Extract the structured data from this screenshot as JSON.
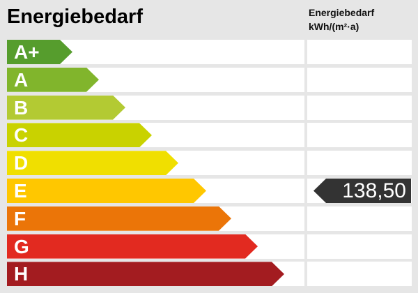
{
  "title": "Energiebedarf",
  "unit_header": {
    "line1": "Energiebedarf",
    "line2": "kWh/(m²·a)"
  },
  "scale": {
    "classes": [
      {
        "label": "A+",
        "color": "#569d2d",
        "arrow_width": 94
      },
      {
        "label": "A",
        "color": "#81b52c",
        "arrow_width": 132
      },
      {
        "label": "B",
        "color": "#b3ca33",
        "arrow_width": 170
      },
      {
        "label": "C",
        "color": "#c9d200",
        "arrow_width": 208
      },
      {
        "label": "D",
        "color": "#f0df00",
        "arrow_width": 246
      },
      {
        "label": "E",
        "color": "#ffc700",
        "arrow_width": 286
      },
      {
        "label": "F",
        "color": "#eb7508",
        "arrow_width": 322
      },
      {
        "label": "G",
        "color": "#e22a20",
        "arrow_width": 360
      },
      {
        "label": "H",
        "color": "#a31c20",
        "arrow_width": 398
      }
    ]
  },
  "value_indicator": {
    "value": "138,50",
    "unit": "kWh/(m²·a)",
    "energy_class": "E",
    "row_index": 5,
    "flag_color": "#333333",
    "text_color": "#ffffff"
  },
  "colors": {
    "background": "#e6e6e6",
    "row_background": "#ffffff"
  },
  "chart_data": {
    "type": "bar",
    "title": "Energiebedarf",
    "categories": [
      "A+",
      "A",
      "B",
      "C",
      "D",
      "E",
      "F",
      "G",
      "H"
    ],
    "series": [
      {
        "name": "scale_arrow_relative_length",
        "values": [
          94,
          132,
          170,
          208,
          246,
          286,
          322,
          360,
          398
        ]
      }
    ],
    "bar_colors": [
      "#569d2d",
      "#81b52c",
      "#b3ca33",
      "#c9d200",
      "#f0df00",
      "#ffc700",
      "#eb7508",
      "#e22a20",
      "#a31c20"
    ],
    "annotations": [
      {
        "text": "138,50",
        "value": 138.5,
        "unit": "kWh/(m²·a)",
        "category": "E"
      }
    ],
    "ylabel": "",
    "xlabel": "Energiebedarf kWh/(m²·a)",
    "legend": false,
    "grid": false
  }
}
